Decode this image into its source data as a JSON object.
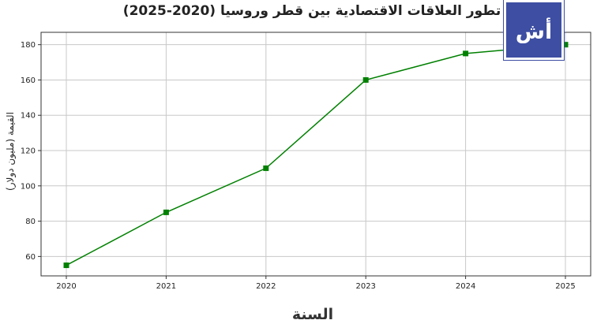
{
  "chart_data": {
    "type": "line",
    "title": "تطور العلاقات الاقتصادية بين قطر وروسيا (2020-2025)",
    "xlabel": "السنة",
    "ylabel": "القيمة (مليون دولار)",
    "categories": [
      "2020",
      "2021",
      "2022",
      "2023",
      "2024",
      "2025"
    ],
    "series": [
      {
        "values": [
          55,
          85,
          110,
          160,
          175,
          180
        ],
        "color": "#008000",
        "marker": "square"
      }
    ],
    "yticks": [
      60,
      80,
      100,
      120,
      140,
      160,
      180
    ],
    "ylim": [
      49,
      187
    ],
    "grid": true
  },
  "logo": {
    "text": "أش"
  }
}
